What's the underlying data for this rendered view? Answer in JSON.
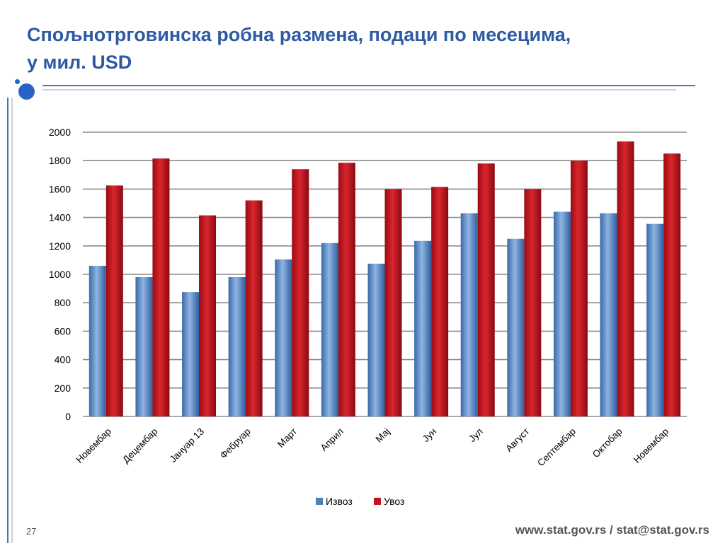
{
  "slide": {
    "title_line1": "Спољнотрговинска робна размена, подаци по месецима,",
    "title_line2": "у мил. USD",
    "page_number": "27",
    "footer": "www.stat.gov.rs / stat@stat.gov.rs"
  },
  "colors": {
    "title": "#2e5aa3",
    "accent": "#4472c4",
    "series_export": "#4f81bd",
    "series_import": "#c0141c"
  },
  "chart_data": {
    "type": "bar",
    "title": "",
    "xlabel": "",
    "ylabel": "",
    "ylim": [
      0,
      2000
    ],
    "yticks": [
      0,
      200,
      400,
      600,
      800,
      1000,
      1200,
      1400,
      1600,
      1800,
      2000
    ],
    "grid": true,
    "legend_position": "bottom",
    "categories": [
      "Новембар",
      "Децембар",
      "Јануар 13",
      "Фебруар",
      "Март",
      "Април",
      "Мај",
      "Јун",
      "Јул",
      "Август",
      "Септембар",
      "Октобар",
      "Новембар"
    ],
    "series": [
      {
        "name": "Извоз",
        "color": "#4f81bd",
        "values": [
          1060,
          980,
          875,
          980,
          1105,
          1220,
          1075,
          1235,
          1430,
          1250,
          1440,
          1430,
          1355
        ]
      },
      {
        "name": "Увоз",
        "color": "#c0141c",
        "values": [
          1625,
          1815,
          1415,
          1520,
          1740,
          1785,
          1600,
          1615,
          1780,
          1600,
          1800,
          1935,
          1850
        ]
      }
    ]
  }
}
